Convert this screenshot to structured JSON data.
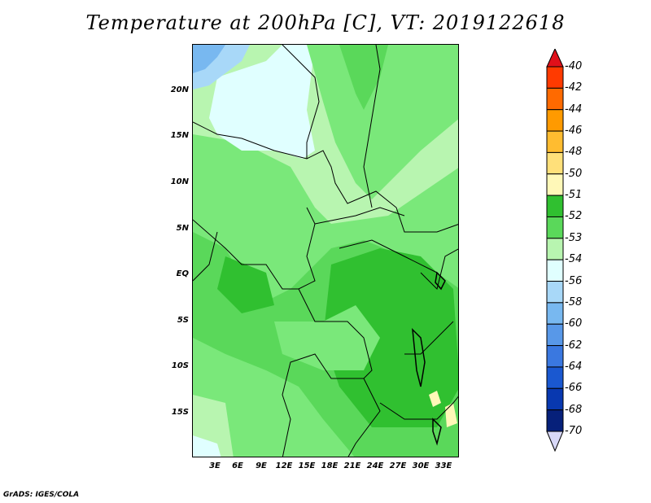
{
  "title": "Temperature at 200hPa [C], VT: 2019122618",
  "footer": "GrADS: IGES/COLA",
  "lat_labels": [
    "20N",
    "15N",
    "10N",
    "5N",
    "EQ",
    "5S",
    "10S",
    "15S"
  ],
  "lon_labels": [
    "3E",
    "6E",
    "9E",
    "12E",
    "15E",
    "18E",
    "21E",
    "24E",
    "27E",
    "30E",
    "33E"
  ],
  "colorbar": {
    "labels": [
      "-40",
      "-42",
      "-44",
      "-46",
      "-48",
      "-50",
      "-51",
      "-52",
      "-53",
      "-54",
      "-56",
      "-58",
      "-60",
      "-62",
      "-64",
      "-66",
      "-68",
      "-70"
    ],
    "colors": [
      "#e0101a",
      "#ff3a00",
      "#ff6a00",
      "#ff9a00",
      "#ffbc30",
      "#ffe07a",
      "#fff8b8",
      "#30c030",
      "#5ad85a",
      "#b8f5b0",
      "#e0ffff",
      "#a8d8f8",
      "#78b8f0",
      "#5898e8",
      "#3a78e0",
      "#1a58d0",
      "#0838b0",
      "#06207a",
      "#d8d8f8"
    ]
  },
  "map_colors": {
    "c52": "#30c030",
    "c53": "#5ad85a",
    "c53b": "#7ae87a",
    "c54": "#b8f5b0",
    "c56": "#e0ffff",
    "c58": "#a8d8f8",
    "c60": "#78b8f0",
    "c51": "#fff8b8"
  }
}
